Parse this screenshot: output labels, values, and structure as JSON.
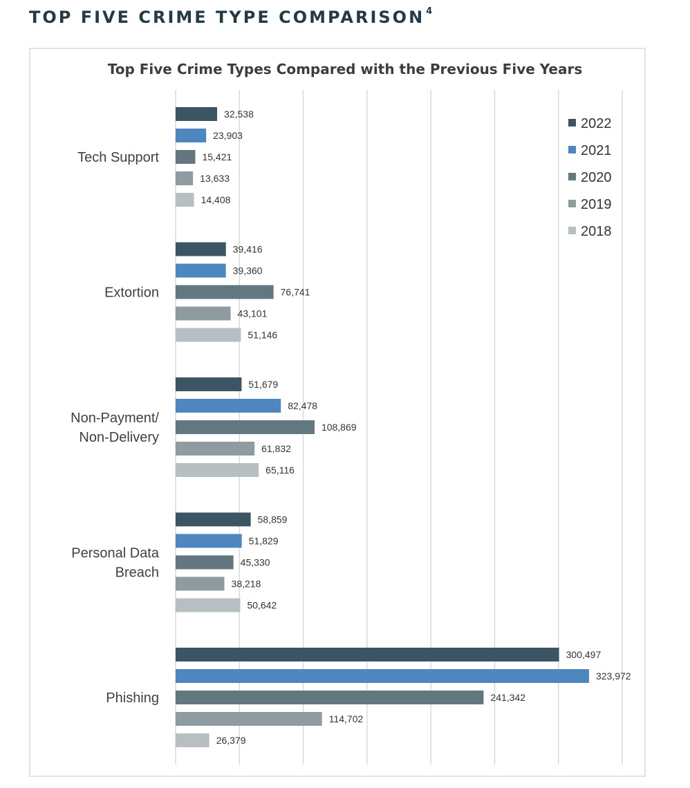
{
  "header": {
    "title": "TOP FIVE CRIME TYPE COMPARISON",
    "footnote": "4"
  },
  "chart_data": {
    "type": "bar",
    "orientation": "horizontal",
    "title": "Top Five Crime Types Compared with the Previous Five Years",
    "xlabel": "",
    "ylabel": "",
    "xlim": [
      0,
      350000
    ],
    "grid": true,
    "legend_position": "top-right",
    "categories": [
      "Tech Support",
      "Extortion",
      "Non-Payment/\nNon-Delivery",
      "Personal Data\nBreach",
      "Phishing"
    ],
    "series": [
      {
        "name": "2022",
        "color": "#3b5564",
        "values": [
          32538,
          39416,
          51679,
          58859,
          300497
        ]
      },
      {
        "name": "2021",
        "color": "#4e86bf",
        "values": [
          23903,
          39360,
          82478,
          51829,
          323972
        ]
      },
      {
        "name": "2020",
        "color": "#62777f",
        "values": [
          15421,
          76741,
          108869,
          45330,
          241342
        ]
      },
      {
        "name": "2019",
        "color": "#8e9ca1",
        "values": [
          13633,
          43101,
          61832,
          38218,
          114702
        ]
      },
      {
        "name": "2018",
        "color": "#b7bfc3",
        "values": [
          14408,
          51146,
          65116,
          50642,
          26379
        ]
      }
    ],
    "value_labels": [
      [
        "32,538",
        "39,416",
        "51,679",
        "58,859",
        "300,497"
      ],
      [
        "23,903",
        "39,360",
        "82,478",
        "51,829",
        "323,972"
      ],
      [
        "15,421",
        "76,741",
        "108,869",
        "45,330",
        "241,342"
      ],
      [
        "13,633",
        "43,101",
        "61,832",
        "38,218",
        "114,702"
      ],
      [
        "14,408",
        "51,146",
        "65,116",
        "50,642",
        "26,379"
      ]
    ]
  }
}
